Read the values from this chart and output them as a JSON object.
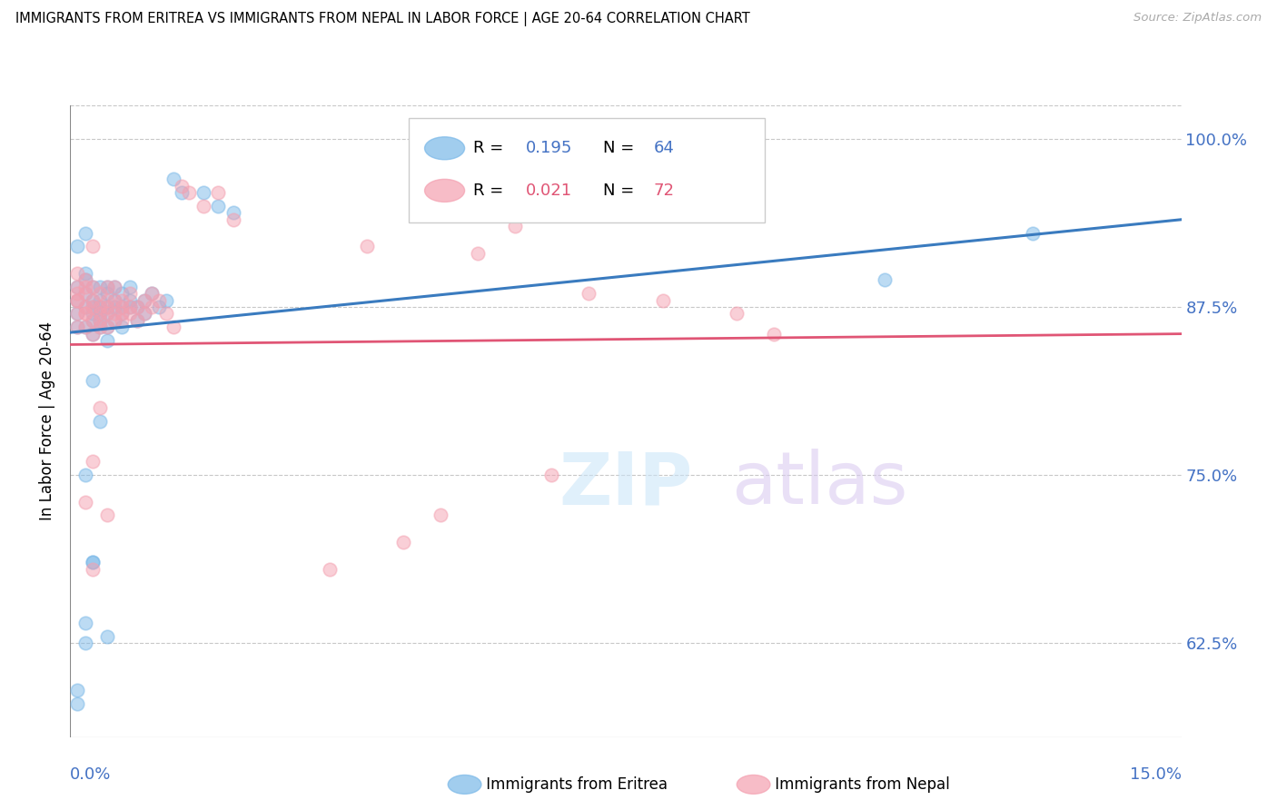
{
  "title": "IMMIGRANTS FROM ERITREA VS IMMIGRANTS FROM NEPAL IN LABOR FORCE | AGE 20-64 CORRELATION CHART",
  "source": "Source: ZipAtlas.com",
  "ylabel": "In Labor Force | Age 20-64",
  "yticks": [
    0.625,
    0.75,
    0.875,
    1.0
  ],
  "ytick_labels": [
    "62.5%",
    "75.0%",
    "87.5%",
    "100.0%"
  ],
  "xmin": 0.0,
  "xmax": 0.15,
  "ymin": 0.555,
  "ymax": 1.025,
  "eritrea_color": "#7ab8e8",
  "nepal_color": "#f4a0b0",
  "eritrea_line_color": "#3a7bbf",
  "nepal_line_color": "#e05575",
  "axis_color": "#4472c4",
  "eritrea_R": "0.195",
  "eritrea_N": "64",
  "nepal_R": "0.021",
  "nepal_N": "72",
  "eritrea_line_x0": 0.0,
  "eritrea_line_x1": 0.15,
  "eritrea_line_y0": 0.856,
  "eritrea_line_y1": 0.94,
  "nepal_line_x0": 0.0,
  "nepal_line_x1": 0.15,
  "nepal_line_y0": 0.847,
  "nepal_line_y1": 0.855,
  "eritrea_scatter_x": [
    0.001,
    0.001,
    0.001,
    0.001,
    0.002,
    0.002,
    0.002,
    0.002,
    0.002,
    0.003,
    0.003,
    0.003,
    0.003,
    0.003,
    0.003,
    0.004,
    0.004,
    0.004,
    0.004,
    0.004,
    0.004,
    0.005,
    0.005,
    0.005,
    0.005,
    0.005,
    0.005,
    0.006,
    0.006,
    0.006,
    0.006,
    0.007,
    0.007,
    0.007,
    0.007,
    0.008,
    0.008,
    0.008,
    0.009,
    0.009,
    0.01,
    0.01,
    0.011,
    0.012,
    0.013,
    0.014,
    0.015,
    0.018,
    0.02,
    0.022,
    0.002,
    0.003,
    0.003,
    0.004,
    0.005,
    0.001,
    0.001,
    0.002,
    0.002,
    0.003,
    0.001,
    0.002,
    0.13,
    0.11
  ],
  "eritrea_scatter_y": [
    0.88,
    0.89,
    0.87,
    0.86,
    0.875,
    0.885,
    0.895,
    0.86,
    0.9,
    0.87,
    0.88,
    0.865,
    0.89,
    0.875,
    0.855,
    0.88,
    0.87,
    0.86,
    0.89,
    0.875,
    0.865,
    0.885,
    0.875,
    0.89,
    0.87,
    0.86,
    0.85,
    0.875,
    0.865,
    0.89,
    0.88,
    0.875,
    0.885,
    0.87,
    0.86,
    0.88,
    0.875,
    0.89,
    0.875,
    0.865,
    0.87,
    0.88,
    0.885,
    0.875,
    0.88,
    0.97,
    0.96,
    0.96,
    0.95,
    0.945,
    0.75,
    0.685,
    0.82,
    0.79,
    0.63,
    0.58,
    0.59,
    0.64,
    0.625,
    0.685,
    0.92,
    0.93,
    0.93,
    0.895
  ],
  "nepal_scatter_x": [
    0.001,
    0.001,
    0.001,
    0.001,
    0.001,
    0.002,
    0.002,
    0.002,
    0.002,
    0.002,
    0.003,
    0.003,
    0.003,
    0.003,
    0.003,
    0.004,
    0.004,
    0.004,
    0.004,
    0.004,
    0.005,
    0.005,
    0.005,
    0.005,
    0.005,
    0.006,
    0.006,
    0.006,
    0.006,
    0.007,
    0.007,
    0.007,
    0.007,
    0.008,
    0.008,
    0.008,
    0.009,
    0.009,
    0.01,
    0.01,
    0.011,
    0.011,
    0.012,
    0.013,
    0.014,
    0.015,
    0.016,
    0.018,
    0.02,
    0.022,
    0.002,
    0.003,
    0.003,
    0.004,
    0.005,
    0.001,
    0.001,
    0.002,
    0.002,
    0.003,
    0.04,
    0.055,
    0.06,
    0.07,
    0.05,
    0.065,
    0.08,
    0.09,
    0.045,
    0.035,
    0.095,
    0.075
  ],
  "nepal_scatter_y": [
    0.88,
    0.885,
    0.87,
    0.86,
    0.9,
    0.875,
    0.885,
    0.895,
    0.86,
    0.87,
    0.88,
    0.865,
    0.89,
    0.875,
    0.855,
    0.875,
    0.865,
    0.885,
    0.87,
    0.86,
    0.88,
    0.87,
    0.89,
    0.875,
    0.86,
    0.87,
    0.88,
    0.865,
    0.89,
    0.875,
    0.865,
    0.88,
    0.87,
    0.875,
    0.885,
    0.87,
    0.875,
    0.865,
    0.87,
    0.88,
    0.875,
    0.885,
    0.88,
    0.87,
    0.86,
    0.965,
    0.96,
    0.95,
    0.96,
    0.94,
    0.73,
    0.68,
    0.76,
    0.8,
    0.72,
    0.88,
    0.89,
    0.87,
    0.89,
    0.92,
    0.92,
    0.915,
    0.935,
    0.885,
    0.72,
    0.75,
    0.88,
    0.87,
    0.7,
    0.68,
    0.855,
    0.96
  ]
}
